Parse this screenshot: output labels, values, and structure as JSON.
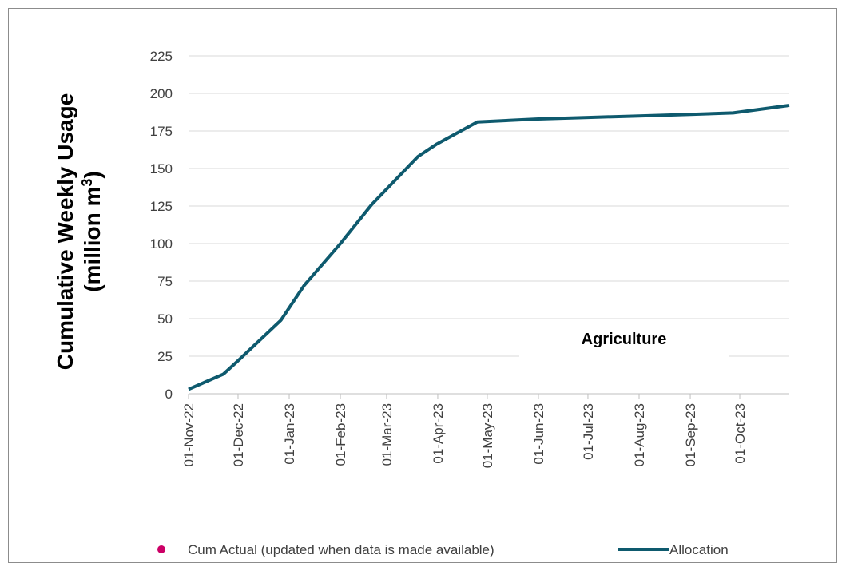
{
  "chart_data": {
    "type": "line",
    "title": "",
    "ylabel": "Cumulative Weekly Usage",
    "ylabel_line2": "(million m",
    "ylabel_sup": "3",
    "ylabel_close": ")",
    "ylim": [
      0,
      225
    ],
    "yticks": [
      0,
      25,
      50,
      75,
      100,
      125,
      150,
      175,
      200,
      225
    ],
    "xlim": [
      "2022-11-01",
      "2023-10-31"
    ],
    "x_ticks": [
      {
        "date": "2022-11-01",
        "label": "01-Nov-22"
      },
      {
        "date": "2022-12-01",
        "label": "01-Dec-22"
      },
      {
        "date": "2023-01-01",
        "label": "01-Jan-23"
      },
      {
        "date": "2023-02-01",
        "label": "01-Feb-23"
      },
      {
        "date": "2023-03-01",
        "label": "01-Mar-23"
      },
      {
        "date": "2023-04-01",
        "label": "01-Apr-23"
      },
      {
        "date": "2023-05-01",
        "label": "01-May-23"
      },
      {
        "date": "2023-06-01",
        "label": "01-Jun-23"
      },
      {
        "date": "2023-07-01",
        "label": "01-Jul-23"
      },
      {
        "date": "2023-08-01",
        "label": "01-Aug-23"
      },
      {
        "date": "2023-09-01",
        "label": "01-Sep-23"
      },
      {
        "date": "2023-10-01",
        "label": "01-Oct-23"
      }
    ],
    "grid": true,
    "legend_position": "bottom",
    "annotation": "Agriculture",
    "series": [
      {
        "name": "Allocation",
        "color": "#0e5a6e",
        "points": [
          {
            "x": "2022-11-01",
            "y": 3
          },
          {
            "x": "2022-11-22",
            "y": 13
          },
          {
            "x": "2022-12-01",
            "y": 22
          },
          {
            "x": "2022-12-27",
            "y": 49
          },
          {
            "x": "2023-01-10",
            "y": 72
          },
          {
            "x": "2023-02-01",
            "y": 100
          },
          {
            "x": "2023-02-20",
            "y": 126
          },
          {
            "x": "2023-03-20",
            "y": 158
          },
          {
            "x": "2023-03-31",
            "y": 166
          },
          {
            "x": "2023-04-25",
            "y": 181
          },
          {
            "x": "2023-06-01",
            "y": 183
          },
          {
            "x": "2023-07-01",
            "y": 184
          },
          {
            "x": "2023-08-01",
            "y": 185
          },
          {
            "x": "2023-09-01",
            "y": 186
          },
          {
            "x": "2023-09-27",
            "y": 187
          },
          {
            "x": "2023-10-31",
            "y": 192
          }
        ]
      },
      {
        "name": "Cum Actual (updated when data is made available)",
        "color": "#cc0066",
        "points": []
      }
    ]
  }
}
